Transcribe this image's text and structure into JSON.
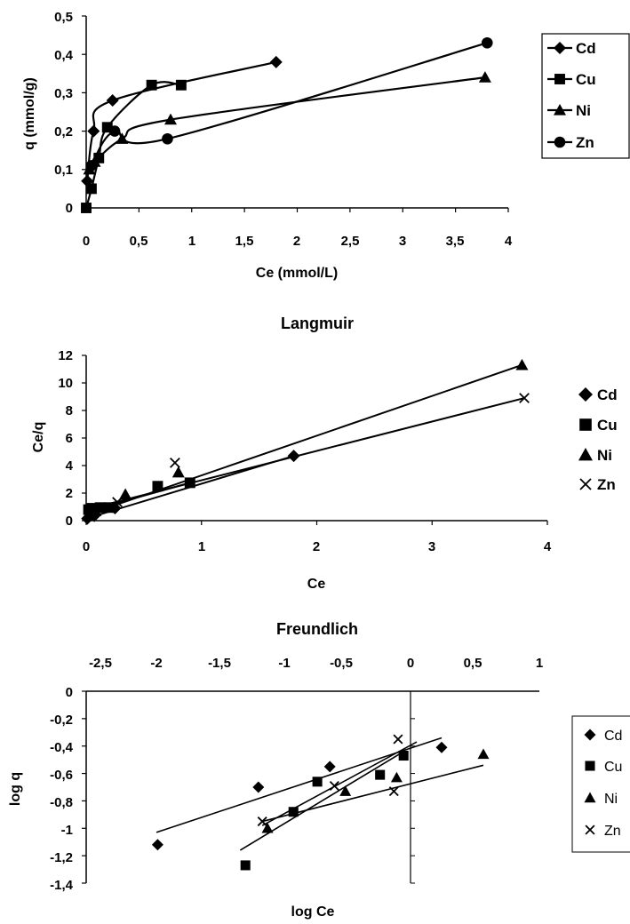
{
  "chart_data": [
    {
      "type": "line",
      "title": "",
      "xlabel": "Ce (mmol/L)",
      "ylabel": "q (mmol/g)",
      "xlim": [
        0,
        4
      ],
      "ylim": [
        0,
        0.5
      ],
      "x_ticks": [
        "0",
        "0,5",
        "1",
        "1,5",
        "2",
        "2,5",
        "3",
        "3,5",
        "4"
      ],
      "y_ticks": [
        "0",
        "0,1",
        "0,2",
        "0,3",
        "0,4",
        "0,5"
      ],
      "grid": false,
      "legend_position": "right",
      "series": [
        {
          "name": "Cd",
          "marker": "diamond",
          "x": [
            0.01,
            0.07,
            0.25,
            1.8
          ],
          "y": [
            0.07,
            0.2,
            0.28,
            0.38
          ]
        },
        {
          "name": "Cu",
          "marker": "square",
          "x": [
            0.0,
            0.05,
            0.12,
            0.2,
            0.62,
            0.9
          ],
          "y": [
            0.0,
            0.05,
            0.13,
            0.21,
            0.32,
            0.32
          ]
        },
        {
          "name": "Ni",
          "marker": "triangle",
          "x": [
            0.03,
            0.08,
            0.34,
            0.8,
            3.78
          ],
          "y": [
            0.1,
            0.12,
            0.18,
            0.23,
            0.34
          ]
        },
        {
          "name": "Zn",
          "marker": "circle",
          "x": [
            0.05,
            0.27,
            0.77,
            3.8
          ],
          "y": [
            0.11,
            0.2,
            0.18,
            0.43
          ]
        }
      ]
    },
    {
      "type": "scatter",
      "title": "Langmuir",
      "xlabel": "Ce",
      "ylabel": "Ce/q",
      "xlim": [
        0,
        4
      ],
      "ylim": [
        0,
        12
      ],
      "x_ticks": [
        "0",
        "1",
        "2",
        "3",
        "4"
      ],
      "y_ticks": [
        "0",
        "2",
        "4",
        "6",
        "8",
        "10",
        "12"
      ],
      "grid": false,
      "legend_position": "right",
      "series": [
        {
          "name": "Cd",
          "marker": "diamond",
          "x": [
            0.01,
            0.07,
            0.25,
            1.8
          ],
          "y": [
            0.15,
            0.35,
            0.9,
            4.7
          ]
        },
        {
          "name": "Cu",
          "marker": "square",
          "x": [
            0.02,
            0.05,
            0.12,
            0.2,
            0.62,
            0.9
          ],
          "y": [
            0.8,
            0.9,
            0.95,
            0.95,
            2.5,
            2.75
          ]
        },
        {
          "name": "Ni",
          "marker": "triangle",
          "x": [
            0.03,
            0.08,
            0.34,
            0.8,
            3.78
          ],
          "y": [
            0.35,
            0.7,
            1.9,
            3.5,
            11.3
          ]
        },
        {
          "name": "Zn",
          "marker": "x",
          "x": [
            0.05,
            0.27,
            0.77,
            3.8
          ],
          "y": [
            0.45,
            1.35,
            4.2,
            8.9
          ]
        }
      ],
      "trendlines": [
        {
          "x": [
            0,
            1.8
          ],
          "y": [
            0.15,
            4.7
          ]
        },
        {
          "x": [
            0,
            0.9
          ],
          "y": [
            0.65,
            2.75
          ]
        },
        {
          "x": [
            0,
            3.78
          ],
          "y": [
            0.4,
            11.3
          ]
        },
        {
          "x": [
            0,
            3.8
          ],
          "y": [
            0.8,
            8.9
          ]
        }
      ]
    },
    {
      "type": "scatter",
      "title": "Freundlich",
      "xlabel": "log Ce",
      "ylabel": "log q",
      "xlim": [
        -2.5,
        1
      ],
      "ylim": [
        -1.4,
        0
      ],
      "x_ticks": [
        "-2,5",
        "-2",
        "-1,5",
        "-1",
        "-0,5",
        "0",
        "0,5",
        "1"
      ],
      "y_ticks": [
        "0",
        "-0,2",
        "-0,4",
        "-0,6",
        "-0,8",
        "-1",
        "-1,2",
        "-1,4"
      ],
      "x_axis_position": "top",
      "grid": false,
      "legend_position": "right",
      "series": [
        {
          "name": "Cd",
          "marker": "diamond",
          "x": [
            -1.99,
            -1.2,
            -0.6,
            0.25
          ],
          "y": [
            -1.12,
            -0.7,
            -0.55,
            -0.41
          ]
        },
        {
          "name": "Cu",
          "marker": "square",
          "x": [
            -1.3,
            -0.92,
            -0.71,
            -0.22,
            -0.05
          ],
          "y": [
            -1.27,
            -0.88,
            -0.66,
            -0.61,
            -0.47
          ]
        },
        {
          "name": "Ni",
          "marker": "triangle",
          "x": [
            -1.13,
            -0.47,
            -0.1,
            0.58
          ],
          "y": [
            -1,
            -0.73,
            -0.63,
            -0.46
          ]
        },
        {
          "name": "Zn",
          "marker": "x",
          "x": [
            -1.17,
            -0.56,
            -0.12,
            -0.09
          ],
          "y": [
            -0.95,
            -0.69,
            -0.73,
            -0.35
          ]
        }
      ],
      "trendlines": [
        {
          "x": [
            -2.0,
            0.25
          ],
          "y": [
            -1.03,
            -0.34
          ]
        },
        {
          "x": [
            -1.34,
            -0.05
          ],
          "y": [
            -1.16,
            -0.44
          ]
        },
        {
          "x": [
            -1.17,
            0.58
          ],
          "y": [
            -0.95,
            -0.54
          ]
        },
        {
          "x": [
            -1.17,
            0.05
          ],
          "y": [
            -0.98,
            -0.37
          ]
        }
      ]
    }
  ]
}
